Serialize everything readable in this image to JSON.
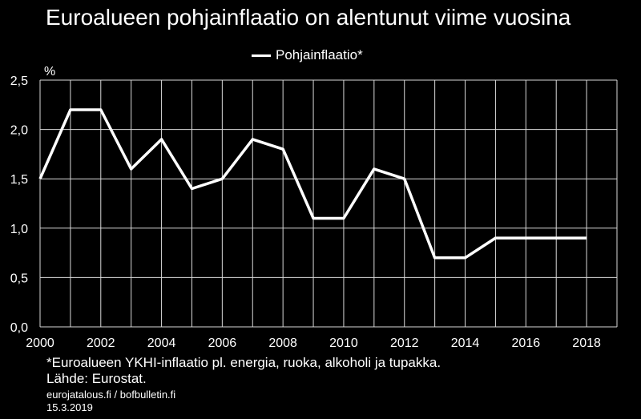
{
  "chart_data": {
    "type": "line",
    "title": "Euroalueen pohjainflaatio on alentunut viime vuosina",
    "ylabel": "%",
    "xlabel": "",
    "ylim": [
      0,
      2.5
    ],
    "xlim": [
      2000,
      2019
    ],
    "y_ticks": [
      "0,0",
      "0,5",
      "1,0",
      "1,5",
      "2,0",
      "2,5"
    ],
    "x_ticks": [
      "2000",
      "2002",
      "2004",
      "2006",
      "2008",
      "2010",
      "2012",
      "2014",
      "2016",
      "2018"
    ],
    "grid": true,
    "legend_position": "top-center",
    "series": [
      {
        "name": "Pohjainflaatio*",
        "color": "#ffffff",
        "x": [
          2000,
          2001,
          2002,
          2003,
          2004,
          2005,
          2006,
          2007,
          2008,
          2009,
          2010,
          2011,
          2012,
          2013,
          2014,
          2015,
          2016,
          2017,
          2018
        ],
        "values": [
          1.5,
          2.2,
          2.2,
          1.6,
          1.9,
          1.4,
          1.5,
          1.9,
          1.8,
          1.1,
          1.1,
          1.6,
          1.5,
          0.7,
          0.7,
          0.9,
          0.9,
          0.9,
          0.9
        ]
      }
    ]
  },
  "footnote": {
    "line1": "*Euroalueen YKHI-inflaatio pl. energia, ruoka, alkoholi ja tupakka.",
    "line2": "Lähde: Eurostat."
  },
  "source_sites": "eurojatalous.fi / bofbulletin.fi",
  "date": "15.3.2019"
}
